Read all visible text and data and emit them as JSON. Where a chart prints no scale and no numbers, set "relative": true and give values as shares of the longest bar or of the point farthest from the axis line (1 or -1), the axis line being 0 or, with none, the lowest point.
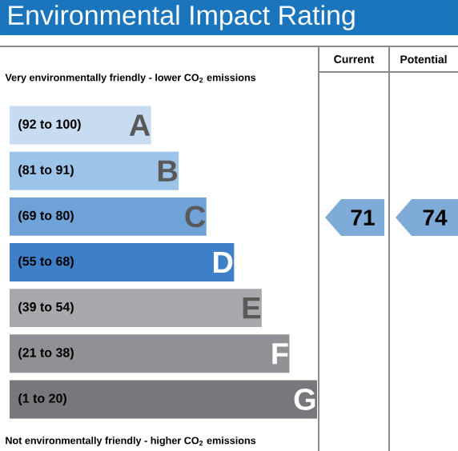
{
  "chart_data": {
    "type": "bar",
    "orientation": "horizontal",
    "relative": true,
    "title": "Environmental Impact Rating",
    "categories": [
      "(92 to 100)",
      "(81 to 91)",
      "(69 to 80)",
      "(55 to 68)",
      "(39 to 54)",
      "(21 to 38)",
      "(1 to 20)"
    ],
    "values": [
      0.46,
      0.55,
      0.64,
      0.73,
      0.82,
      0.91,
      1.0
    ],
    "colors": [
      "#c7dcf0",
      "#9cc3e8",
      "#6fa3d8",
      "#3f7fc8",
      "#a7a9ac",
      "#8f9194",
      "#77787b"
    ],
    "annotations": [
      "Very environmentally friendly - lower CO$_{2}$ emissions",
      "Not environmentally friendly - higher CO$_{2}$ emissions",
      "Current",
      "Potential",
      {
        "text": "A",
        "x": 0.46,
        "y": "(92 to 100)"
      },
      {
        "text": "B",
        "x": 0.55,
        "y": "(81 to 91)"
      },
      {
        "text": "C",
        "x": 0.64,
        "y": "(69 to 80)"
      },
      {
        "text": "D",
        "x": 0.73,
        "y": "(55 to 68)"
      },
      {
        "text": "E",
        "x": 0.82,
        "y": "(39 to 54)"
      },
      {
        "text": "F",
        "x": 0.91,
        "y": "(21 to 38)"
      },
      {
        "text": "G",
        "x": 1.0,
        "y": "(1 to 20)"
      },
      "71",
      "74"
    ]
  }
}
